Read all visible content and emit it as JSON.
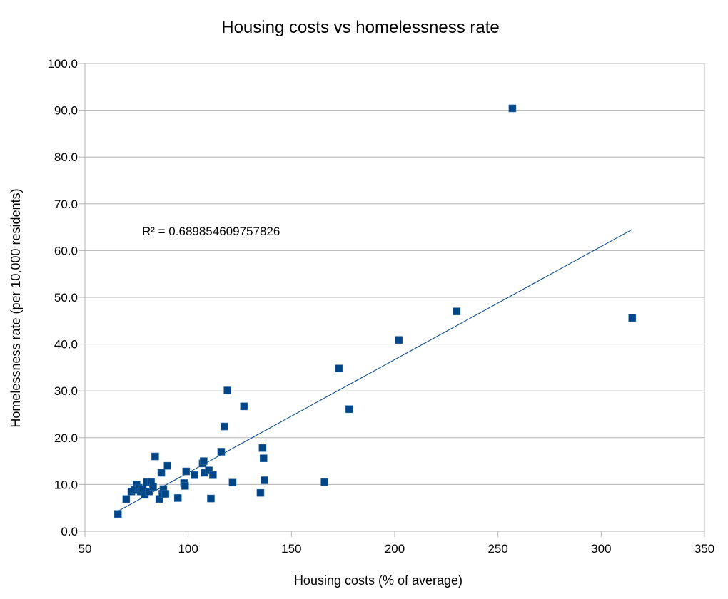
{
  "chart_data": {
    "type": "scatter",
    "title": "Housing costs vs homelessness rate",
    "xlabel": "Housing costs (% of average)",
    "ylabel": "Homelessness rate (per 10,000 residents)",
    "xlim": [
      50,
      350
    ],
    "ylim": [
      0,
      100
    ],
    "xticks": [
      50,
      100,
      150,
      200,
      250,
      300,
      350
    ],
    "xtick_labels": [
      "50",
      "100",
      "150",
      "200",
      "250",
      "300",
      "350"
    ],
    "yticks": [
      0,
      10,
      20,
      30,
      40,
      50,
      60,
      70,
      80,
      90,
      100
    ],
    "ytick_labels": [
      "0.0",
      "10.0",
      "20.0",
      "30.0",
      "40.0",
      "50.0",
      "60.0",
      "70.0",
      "80.0",
      "90.0",
      "100.0"
    ],
    "grid": "horizontal",
    "marker_color": "#004586",
    "series": [
      {
        "name": "Homelessness rate",
        "points": [
          [
            66,
            3.7
          ],
          [
            70,
            6.9
          ],
          [
            72.5,
            8.5
          ],
          [
            74,
            8.8
          ],
          [
            75,
            10
          ],
          [
            76,
            9.3
          ],
          [
            77,
            8.5
          ],
          [
            78,
            9
          ],
          [
            79,
            7.8
          ],
          [
            80,
            10.5
          ],
          [
            81,
            8.5
          ],
          [
            82,
            10.5
          ],
          [
            83,
            9.5
          ],
          [
            84,
            16
          ],
          [
            86,
            6.9
          ],
          [
            87,
            12.5
          ],
          [
            87.5,
            8
          ],
          [
            88,
            9
          ],
          [
            89,
            8
          ],
          [
            90,
            14
          ],
          [
            95,
            7.1
          ],
          [
            98,
            10.3
          ],
          [
            98.5,
            9.7
          ],
          [
            99,
            12.8
          ],
          [
            103,
            12
          ],
          [
            107,
            14.5
          ],
          [
            107.5,
            15
          ],
          [
            108,
            12.5
          ],
          [
            110,
            13
          ],
          [
            111,
            7
          ],
          [
            112,
            12
          ],
          [
            116,
            17
          ],
          [
            117.5,
            22.4
          ],
          [
            119,
            30.1
          ],
          [
            121.5,
            10.4
          ],
          [
            127,
            26.7
          ],
          [
            135,
            8.2
          ],
          [
            136,
            17.8
          ],
          [
            136.5,
            15.6
          ],
          [
            137,
            10.9
          ],
          [
            166,
            10.5
          ],
          [
            173,
            34.8
          ],
          [
            178,
            26.1
          ],
          [
            202,
            40.9
          ],
          [
            230,
            47
          ],
          [
            257,
            90.4
          ],
          [
            315,
            45.6
          ]
        ]
      }
    ],
    "trendline": {
      "type": "linear",
      "slope": 0.2418,
      "intercept": -11.66,
      "x_range": [
        66,
        315
      ],
      "color": "#004586"
    },
    "annotation": "R² = 0.689854609757826"
  }
}
